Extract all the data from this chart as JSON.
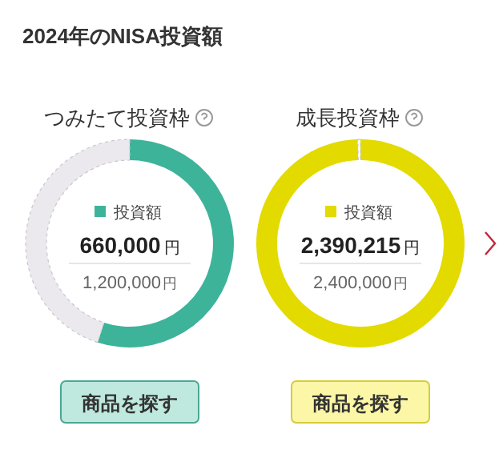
{
  "chart_data": [
    {
      "type": "donut",
      "title": "2024年のNISA投資額",
      "subtitle": "つみたて投資枠",
      "categories": [
        "投資額",
        null
      ],
      "values": [
        660000,
        540000
      ],
      "colors": [
        "#3db39a",
        "#ece9ee"
      ],
      "value_labels": [
        "660,000円",
        null
      ],
      "legend": "center",
      "annotations": [
        "1,200,000円",
        "商品を探す"
      ]
    },
    {
      "type": "donut",
      "subtitle": "成長投資枠",
      "categories": [
        "投資額",
        null
      ],
      "values": [
        2390215,
        9785
      ],
      "colors": [
        "#e3da00",
        "#ffffff"
      ],
      "value_labels": [
        "2,390,215円",
        null
      ],
      "legend": "center",
      "annotations": [
        "2,400,000円",
        "商品を探す"
      ]
    }
  ]
}
